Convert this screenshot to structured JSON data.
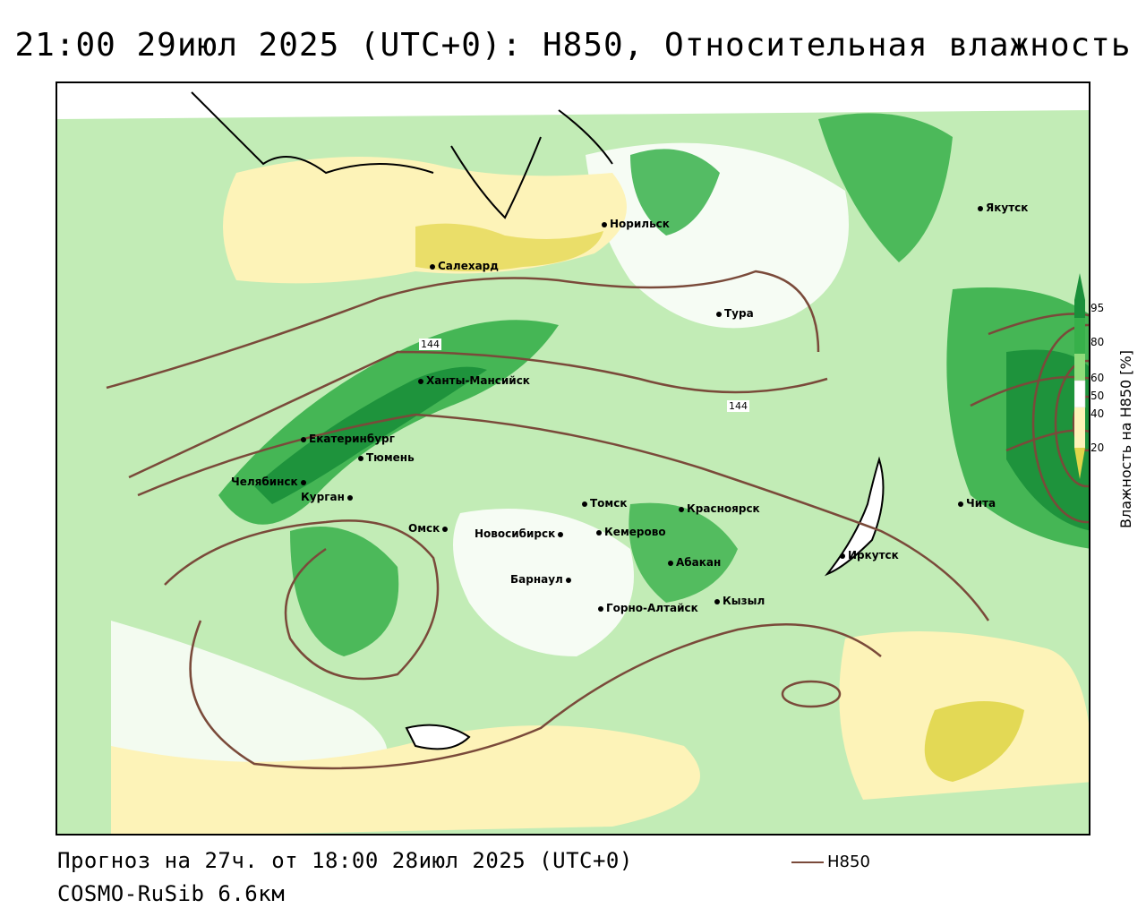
{
  "title": "21:00 29июл 2025 (UTC+0): H850, Относительная влажность",
  "forecast_text": "Прогноз на 27ч. от 18:00 28июл 2025 (UTC+0)",
  "model_text": "COSMO-RuSib 6.6км",
  "legend": {
    "line_label": "H850",
    "line_color": "#7a4a3a"
  },
  "colorbar": {
    "title": "Влажность на H850 [%]",
    "ticks": [
      "95",
      "80",
      "60",
      "50",
      "40",
      "20"
    ],
    "colors": {
      "c95": "#1a8f3a",
      "c80": "#37b04a",
      "c60": "#8fdc7a",
      "c50": "#ffffff",
      "c40": "#fdf3b8",
      "c20": "#e0d64a"
    }
  },
  "contour_labels": [
    "144",
    "144"
  ],
  "cities": [
    {
      "name": "Якутск"
    },
    {
      "name": "Норильск"
    },
    {
      "name": "Салехард"
    },
    {
      "name": "Тура"
    },
    {
      "name": "Ханты-Мансийск"
    },
    {
      "name": "Екатеринбург"
    },
    {
      "name": "Тюмень"
    },
    {
      "name": "Челябинск"
    },
    {
      "name": "Курган"
    },
    {
      "name": "Омск"
    },
    {
      "name": "Новосибирск"
    },
    {
      "name": "Томск"
    },
    {
      "name": "Кемерово"
    },
    {
      "name": "Красноярск"
    },
    {
      "name": "Абакан"
    },
    {
      "name": "Барнаул"
    },
    {
      "name": "Горно-Алтайск"
    },
    {
      "name": "Кызыл"
    },
    {
      "name": "Иркутск"
    },
    {
      "name": "Чита"
    }
  ]
}
